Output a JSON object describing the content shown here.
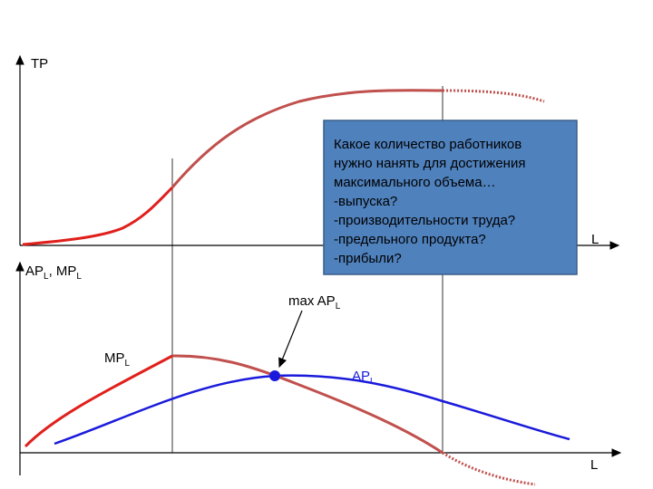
{
  "top_graph": {
    "y_label": "TP",
    "x_label": "L"
  },
  "bottom_graph": {
    "y_label": [
      "AP",
      "L",
      ", MP",
      "L"
    ],
    "x_label": "L",
    "mp_label": [
      "MP",
      "L"
    ],
    "ap_label": [
      "AP",
      "L"
    ],
    "annotation": [
      "max AP",
      "L"
    ]
  },
  "question_box": {
    "lines": [
      "Какое количество работников",
      "нужно нанять для достижения",
      "максимального объема…",
      "-выпуска?",
      "-производительности труда?",
      "-предельного продукта?",
      "-прибыли?"
    ]
  }
}
